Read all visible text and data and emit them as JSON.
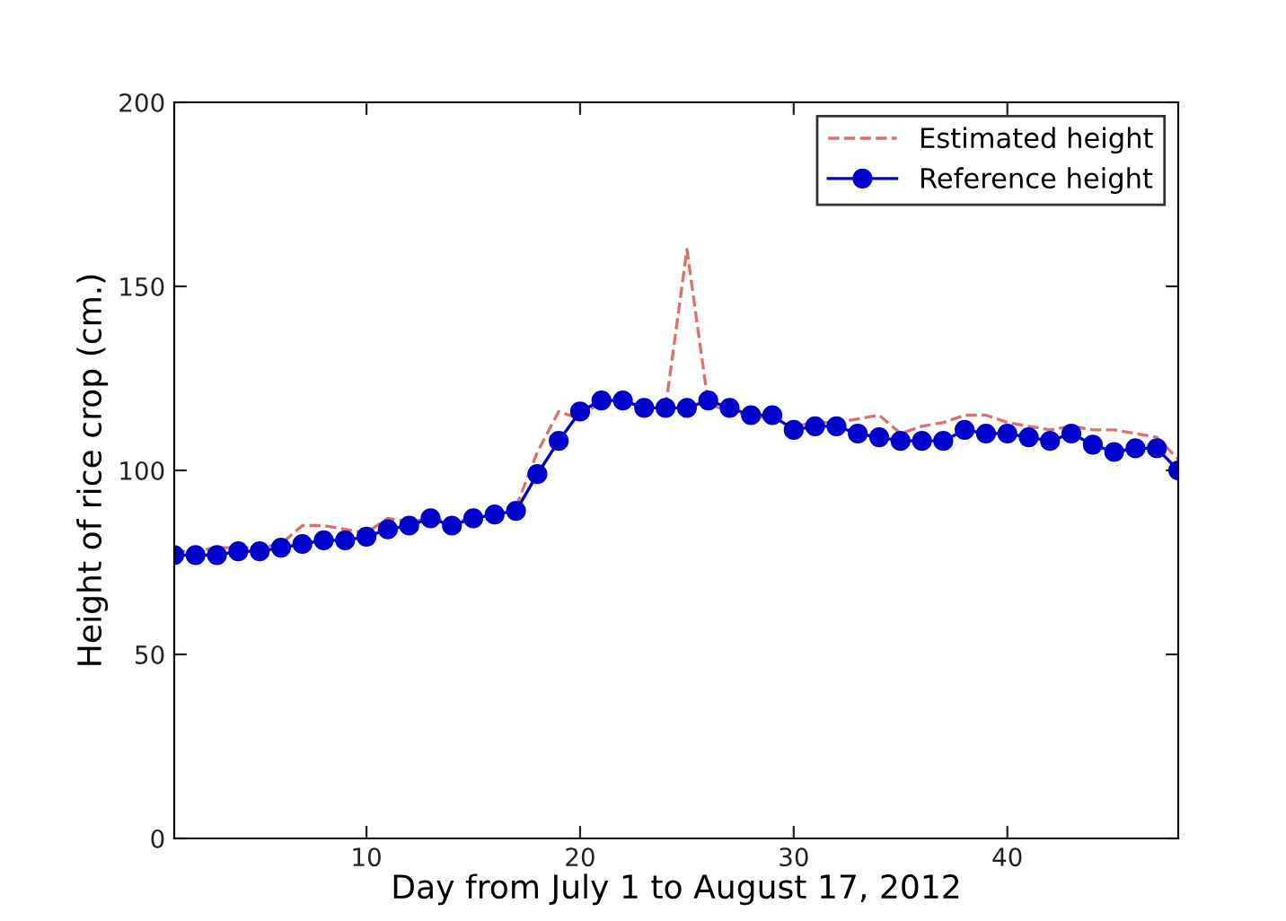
{
  "chart_data": {
    "type": "line",
    "xlabel": "Day from July 1 to August 17, 2012",
    "ylabel": "Height of rice crop (cm.)",
    "x": [
      1,
      2,
      3,
      4,
      5,
      6,
      7,
      8,
      9,
      10,
      11,
      12,
      13,
      14,
      15,
      16,
      17,
      18,
      19,
      20,
      21,
      22,
      23,
      24,
      25,
      26,
      27,
      28,
      29,
      30,
      31,
      32,
      33,
      34,
      35,
      36,
      37,
      38,
      39,
      40,
      41,
      42,
      43,
      44,
      45,
      46,
      47,
      48
    ],
    "series": [
      {
        "name": "Estimated height",
        "color": "#e07070",
        "line_style": "dashed",
        "marker": "none",
        "values": [
          78,
          78,
          79,
          79,
          79,
          80,
          85,
          85,
          84,
          83,
          87,
          86,
          87,
          86,
          87,
          null,
          90,
          105,
          116,
          114,
          119,
          null,
          null,
          117,
          160,
          118,
          116,
          115,
          114,
          112,
          113,
          113,
          114,
          115,
          110,
          112,
          113,
          115,
          115,
          113,
          112,
          111,
          112,
          111,
          111,
          110,
          109,
          103
        ]
      },
      {
        "name": "Reference height",
        "color": "#0000cc",
        "line_style": "solid",
        "marker": "circle",
        "values": [
          77,
          77,
          77,
          78,
          78,
          79,
          80,
          81,
          81,
          82,
          84,
          85,
          87,
          85,
          87,
          88,
          89,
          99,
          108,
          116,
          119,
          119,
          117,
          117,
          117,
          119,
          117,
          115,
          115,
          111,
          112,
          112,
          110,
          109,
          108,
          108,
          108,
          111,
          110,
          110,
          109,
          108,
          110,
          107,
          105,
          106,
          106,
          100
        ]
      }
    ],
    "xlim": [
      1,
      48
    ],
    "xticks": [
      10,
      20,
      30,
      40
    ],
    "ylim": [
      0,
      200
    ],
    "yticks": [
      0,
      50,
      100,
      150,
      200
    ],
    "grid": false,
    "legend": "top right"
  }
}
